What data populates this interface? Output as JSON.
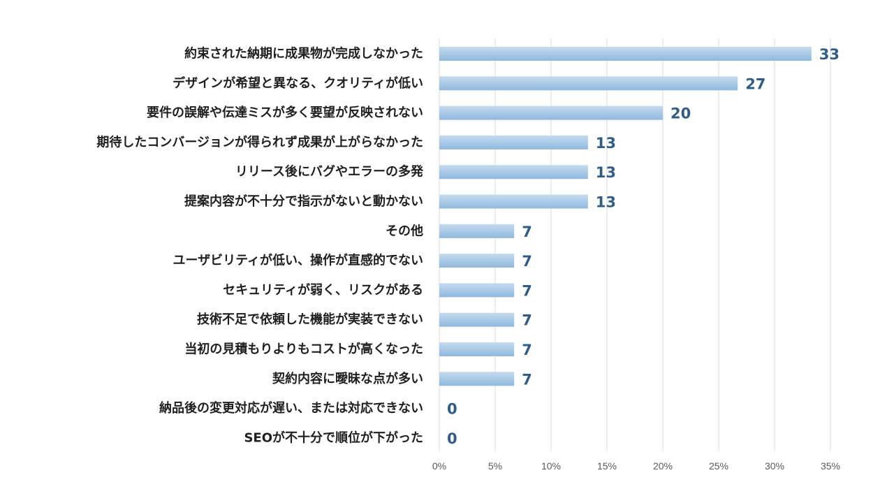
{
  "chart_data": {
    "type": "bar",
    "orientation": "horizontal",
    "categories": [
      "約束された納期に成果物が完成しなかった",
      "デザインが希望と異なる、クオリティが低い",
      "要件の誤解や伝達ミスが多く要望が反映されない",
      "期待したコンバージョンが得られず成果が上がらなかった",
      "リリース後にバグやエラーの多発",
      "提案内容が不十分で指示がないと動かない",
      "その他",
      "ユーザビリティが低い、操作が直感的でない",
      "セキュリティが弱く、リスクがある",
      "技術不足で依頼した機能が実装できない",
      "当初の見積もりよりもコストが高くなった",
      "契約内容に曖昧な点が多い",
      "納品後の変更対応が遅い、または対応できない",
      "SEOが不十分で順位が下がった"
    ],
    "values": [
      33.3,
      26.7,
      20.0,
      13.3,
      13.3,
      13.3,
      6.7,
      6.7,
      6.7,
      6.7,
      6.7,
      6.7,
      0,
      0
    ],
    "data_labels": [
      "33",
      "27",
      "20",
      "13",
      "13",
      "13",
      "7",
      "7",
      "7",
      "7",
      "7",
      "7",
      "0",
      "0"
    ],
    "xlim": [
      0,
      35
    ],
    "x_ticks": [
      0,
      5,
      10,
      15,
      20,
      25,
      30,
      35
    ],
    "x_tick_labels": [
      "0%",
      "5%",
      "10%",
      "15%",
      "20%",
      "25%",
      "30%",
      "35%"
    ],
    "grid": true,
    "legend": "none",
    "title": "",
    "xlabel": "",
    "ylabel": "",
    "colors": {
      "bar_top": "#c5dbef",
      "bar_bottom": "#8fb9de",
      "value_label": "#2e5d8c",
      "category_label": "#1f1f1f",
      "grid": "#d9d9d9",
      "tick": "#595959"
    }
  }
}
